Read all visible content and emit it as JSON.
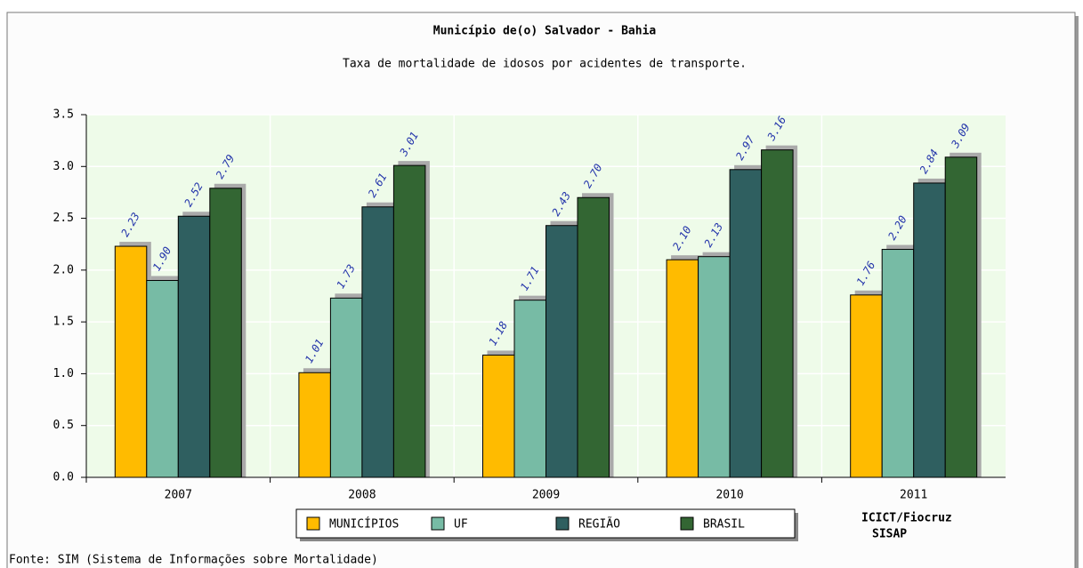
{
  "chart_data": {
    "type": "bar",
    "title": "Município de(o) Salvador - Bahia",
    "subtitle": "Taxa de mortalidade de idosos por acidentes de transporte.",
    "categories": [
      "2007",
      "2008",
      "2009",
      "2010",
      "2011"
    ],
    "series": [
      {
        "name": "MUNICÍPIOS",
        "color": "#ffbb00",
        "values": [
          2.23,
          1.01,
          1.18,
          2.1,
          1.76
        ],
        "value_labels": [
          "2.23",
          "1.01",
          "1.18",
          "2.10",
          "1.76"
        ]
      },
      {
        "name": "UF",
        "color": "#77bba5",
        "values": [
          1.9,
          1.73,
          1.71,
          2.13,
          2.2
        ],
        "value_labels": [
          "1.90",
          "1.73",
          "1.71",
          "2.13",
          "2.20"
        ]
      },
      {
        "name": "REGIÃO",
        "color": "#2f5f60",
        "values": [
          2.52,
          2.61,
          2.43,
          2.97,
          2.84
        ],
        "value_labels": [
          "2.52",
          "2.61",
          "2.43",
          "2.97",
          "2.84"
        ]
      },
      {
        "name": "BRASIL",
        "color": "#336633",
        "values": [
          2.79,
          3.01,
          2.7,
          3.16,
          3.09
        ],
        "value_labels": [
          "2.79",
          "3.01",
          "2.70",
          "3.16",
          "3.09"
        ]
      }
    ],
    "ylim": [
      0,
      3.5
    ],
    "yticks": [
      {
        "value": 0,
        "label": "0.0"
      },
      0.5,
      {
        "value": 1,
        "label": "1.0"
      },
      1.5,
      {
        "value": 2,
        "label": "2.0"
      },
      2.5,
      {
        "value": 3,
        "label": "3.0"
      },
      3.5
    ],
    "grid": true,
    "legend": "bottom",
    "annotations": [
      "ICICT/Fiocruz",
      "SISAP"
    ],
    "source": "Fonte: SIM (Sistema de Informações sobre Mortalidade)"
  }
}
